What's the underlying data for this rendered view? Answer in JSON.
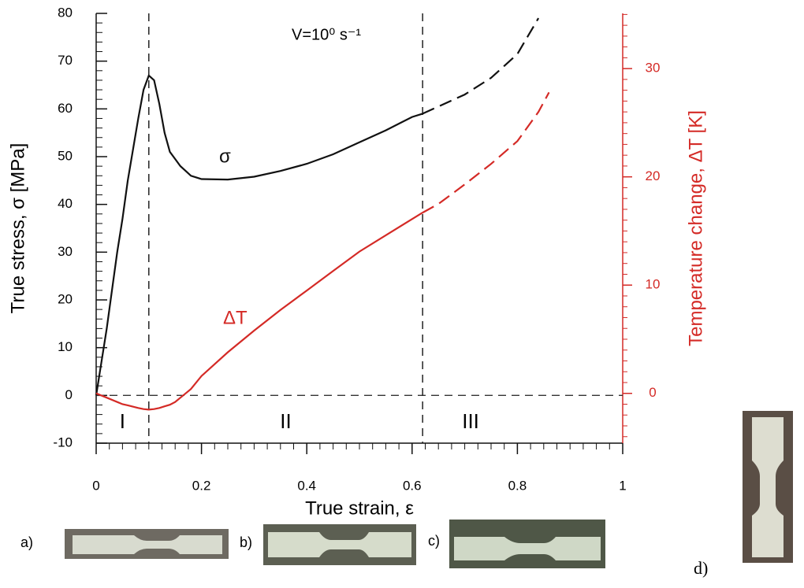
{
  "chart_data": {
    "type": "line",
    "annotation": "V=10⁰ s⁻¹",
    "xlabel": "True strain, ε",
    "ylabel": "True stress, σ [MPa]",
    "y2label": "Temperature change, ΔT [K]",
    "xlim": [
      0,
      1
    ],
    "xticks": [
      0,
      0.2,
      0.4,
      0.6,
      0.8,
      1
    ],
    "xminor_step": 0.025,
    "ylim": [
      -10,
      80
    ],
    "yticks": [
      -10,
      0,
      10,
      20,
      30,
      40,
      50,
      60,
      70,
      80
    ],
    "yminor_step": 2,
    "y2lim": [
      -4.6,
      35.1
    ],
    "y2ticks": [
      0,
      10,
      20,
      30
    ],
    "y2minor_step": 1,
    "y2color": "#d42a26",
    "vlines": [
      0.1,
      0.62
    ],
    "hline": 0,
    "regions": [
      "I",
      "II",
      "III"
    ],
    "x": [
      0,
      0.02,
      0.04,
      0.05,
      0.06,
      0.08,
      0.09,
      0.1,
      0.11,
      0.12,
      0.13,
      0.14,
      0.15,
      0.16,
      0.17,
      0.18,
      0.2,
      0.25,
      0.3,
      0.35,
      0.4,
      0.45,
      0.5,
      0.55,
      0.6,
      0.62,
      0.65,
      0.7,
      0.75,
      0.8,
      0.84,
      0.86
    ],
    "series": [
      {
        "name": "σ",
        "color": "#111111",
        "values": [
          0,
          14,
          30,
          37,
          45,
          58,
          64,
          67,
          66,
          61,
          55,
          51,
          49.5,
          48,
          47,
          46,
          45.3,
          45.2,
          45.8,
          47,
          48.5,
          50.5,
          53,
          55.5,
          58.3,
          59,
          60.5,
          63,
          66.5,
          71.5,
          79,
          null
        ]
      },
      {
        "name": "ΔT",
        "color": "#d42a26",
        "axis": "y2",
        "values": [
          0,
          -0.4,
          -0.8,
          -1.0,
          -1.1,
          -1.35,
          -1.45,
          -1.5,
          -1.45,
          -1.35,
          -1.2,
          -1.05,
          -0.8,
          -0.4,
          0,
          0.4,
          1.6,
          3.8,
          5.8,
          7.7,
          9.5,
          11.3,
          13.1,
          14.6,
          16.1,
          16.7,
          17.5,
          19.3,
          21.2,
          23.3,
          26,
          27.8
        ]
      }
    ]
  },
  "photos": {
    "labels": [
      "a)",
      "b)",
      "c)",
      "d)"
    ]
  }
}
